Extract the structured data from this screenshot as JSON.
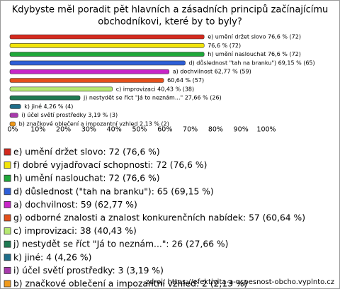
{
  "chart_data": {
    "type": "bar",
    "orientation": "horizontal",
    "title": [
      "Kdybyste měl poradit pět hlavních a zásadních principů začínajícímu",
      "obchodníkovi, které by to byly?"
    ],
    "values": [
      76.6,
      76.6,
      76.6,
      69.15,
      62.77,
      60.64,
      40.43,
      27.66,
      4.26,
      3.19,
      2.13
    ],
    "value_labels": [
      "e) umění držet slovo 76,6 % (72)",
      "76,6 % (72)",
      "h) umění naslouchat 76,6 % (72)",
      "d) důslednost \"tah na branku\") 69,15 % (65)",
      "a) dochvilnost 62,77 % (59)",
      "60,64 % (57)",
      "c) improvizaci 40,43 % (38)",
      "j) nestydět se říct \"Já to neznám...\" 27,66 % (26)",
      "k) jiné 4,26 % (4)",
      "i) účel světí prostředky 3,19 % (3)",
      "b) značkové oblečení a impozantní vzhled 2,13 % (2)"
    ],
    "legend": [
      "e) umění držet slovo: 72 (76,6 %)",
      "f) dobré vyjadřovací schopnosti: 72 (76,6 %)",
      "h) umění naslouchat: 72 (76,6 %)",
      "d) důslednost (\"tah na branku\"): 65 (69,15 %)",
      "a) dochvilnost: 59 (62,77 %)",
      "g) odborné znalosti a znalost konkurenčních nabídek: 57 (60,64 %)",
      "c) improvizaci: 38 (40,43 %)",
      "j) nestydět se říct \"Já to neznám...\": 26 (27,66 %)",
      "k) jiné: 4 (4,26 %)",
      "i) účel světí prostředky: 3 (3,19 %)",
      "b) značkové oblečení a impozantní vzhled: 2 (2,13 %)"
    ],
    "colors": [
      "#d42a1e",
      "#f2e40a",
      "#1fa83a",
      "#2d5fd8",
      "#c825c8",
      "#e4501c",
      "#b6e872",
      "#1f7a52",
      "#1f6e8a",
      "#a83aac",
      "#f09a1c"
    ],
    "xlim": [
      0,
      100
    ],
    "xticks": [
      {
        "value": 0,
        "label": "0%"
      },
      {
        "value": 10,
        "label": "10%"
      },
      {
        "value": 20,
        "label": "20%"
      },
      {
        "value": 30,
        "label": "30%"
      },
      {
        "value": 40,
        "label": "40%"
      },
      {
        "value": 50,
        "label": "50%"
      },
      {
        "value": 60,
        "label": "60%"
      },
      {
        "value": 70,
        "label": "70%"
      },
      {
        "value": 80,
        "label": "80%"
      },
      {
        "value": 90,
        "label": "90%"
      },
      {
        "value": 100,
        "label": "100%"
      }
    ],
    "source": "zdroj: https://efektivita-a-uspesnost-obcho.vyplnto.cz"
  }
}
